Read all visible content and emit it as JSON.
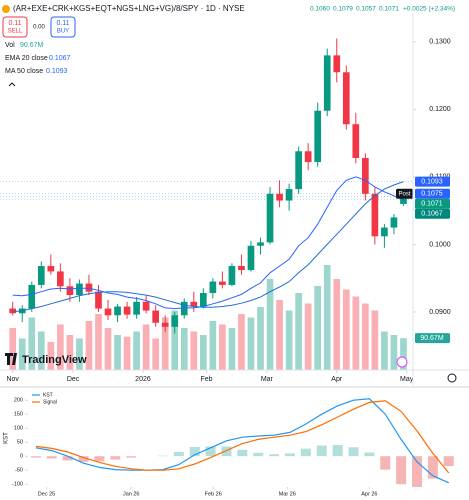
{
  "header": {
    "symbol": "(AR+EXE+CRK+KGS+EQT+NGS+LNG+VG)/8/SPY · 1D · NYSE",
    "open": "0.1060",
    "high": "0.1079",
    "low": "0.1057",
    "close": "0.1071",
    "change": "+0.0025 (+2.34%)",
    "sell_price": "0.11",
    "sell_label": "SELL",
    "spread": "0.00",
    "buy_price": "0.11",
    "buy_label": "BUY",
    "vol_label": "Vol",
    "vol_value": "90.67M",
    "logo": "TradingView"
  },
  "chart_data": [
    {
      "type": "candlestick",
      "x": [
        0,
        3,
        6,
        9,
        12,
        15,
        18,
        21,
        24,
        27,
        30,
        33,
        36,
        39,
        42,
        45,
        48,
        51,
        54,
        57,
        60,
        63,
        66,
        69,
        72,
        75,
        78,
        81,
        84,
        87,
        90,
        93,
        96,
        99,
        102,
        105,
        108,
        111,
        114,
        117,
        120,
        123
      ],
      "open": [
        0.0905,
        0.0898,
        0.0905,
        0.094,
        0.0968,
        0.096,
        0.0938,
        0.0925,
        0.0942,
        0.093,
        0.0905,
        0.0895,
        0.0908,
        0.0896,
        0.0915,
        0.0902,
        0.0884,
        0.0878,
        0.0895,
        0.0915,
        0.0908,
        0.0928,
        0.0945,
        0.094,
        0.0968,
        0.0962,
        0.0998,
        0.1003,
        0.1075,
        0.1065,
        0.1082,
        0.1138,
        0.1122,
        0.1198,
        0.128,
        0.1255,
        0.1178,
        0.1128,
        0.1075,
        0.1012,
        0.1025,
        0.106
      ],
      "high": [
        0.0915,
        0.091,
        0.0945,
        0.0975,
        0.0985,
        0.0972,
        0.095,
        0.0948,
        0.0955,
        0.094,
        0.0918,
        0.0912,
        0.0915,
        0.0922,
        0.0925,
        0.091,
        0.0895,
        0.09,
        0.092,
        0.093,
        0.0935,
        0.095,
        0.096,
        0.0972,
        0.0985,
        0.1005,
        0.101,
        0.1085,
        0.1095,
        0.109,
        0.1145,
        0.115,
        0.121,
        0.129,
        0.1305,
        0.1265,
        0.1195,
        0.1135,
        0.1085,
        0.103,
        0.1045,
        0.1079
      ],
      "low": [
        0.0895,
        0.0885,
        0.09,
        0.0935,
        0.0955,
        0.093,
        0.0915,
        0.0915,
        0.0925,
        0.09,
        0.0888,
        0.0885,
        0.089,
        0.089,
        0.0898,
        0.0878,
        0.087,
        0.0868,
        0.089,
        0.09,
        0.0905,
        0.092,
        0.0935,
        0.0938,
        0.0955,
        0.096,
        0.0985,
        0.1,
        0.1055,
        0.105,
        0.1075,
        0.111,
        0.1115,
        0.119,
        0.124,
        0.117,
        0.112,
        0.1065,
        0.1,
        0.0995,
        0.1015,
        0.1057
      ],
      "close": [
        0.0898,
        0.0905,
        0.094,
        0.0968,
        0.096,
        0.0938,
        0.0925,
        0.0942,
        0.093,
        0.0905,
        0.0895,
        0.0908,
        0.0896,
        0.0915,
        0.0902,
        0.0884,
        0.0878,
        0.0895,
        0.0915,
        0.0908,
        0.0928,
        0.0945,
        0.094,
        0.0968,
        0.0962,
        0.0998,
        0.1003,
        0.1075,
        0.1065,
        0.1082,
        0.1138,
        0.1122,
        0.1198,
        0.128,
        0.1255,
        0.1178,
        0.1128,
        0.1075,
        0.1012,
        0.1025,
        0.104,
        0.1071
      ],
      "volume": [
        120,
        90,
        150,
        110,
        80,
        130,
        100,
        90,
        140,
        160,
        120,
        100,
        95,
        110,
        130,
        90,
        150,
        170,
        120,
        110,
        100,
        140,
        130,
        120,
        160,
        150,
        180,
        260,
        200,
        170,
        220,
        190,
        240,
        300,
        260,
        230,
        210,
        190,
        170,
        110,
        100,
        91
      ],
      "up_color": "#089981",
      "down_color": "#f23645",
      "xlim": [
        -4,
        126
      ],
      "ylim": [
        0.0814,
        0.1362
      ],
      "vlim": [
        0,
        400
      ],
      "xticks": [
        {
          "value": 0,
          "label": "Nov"
        },
        {
          "value": 19,
          "label": "Dec"
        },
        {
          "value": 41,
          "label": "2026"
        },
        {
          "value": 61,
          "label": "Feb"
        },
        {
          "value": 80,
          "label": "Mar"
        },
        {
          "value": 102,
          "label": "Apr"
        },
        {
          "value": 124,
          "label": "May"
        }
      ],
      "yticks": [
        {
          "value": 0.09,
          "label": "0.0900"
        },
        {
          "value": 0.1,
          "label": "0.1000"
        },
        {
          "value": 0.11,
          "label": "0.1100"
        },
        {
          "value": 0.12,
          "label": "0.1200"
        },
        {
          "value": 0.13,
          "label": "0.1300"
        }
      ],
      "lines": [
        {
          "name": "EMA 20 close",
          "color": "#2962ff",
          "values": [
            0.0925,
            0.0924,
            0.0926,
            0.093,
            0.0934,
            0.0935,
            0.0934,
            0.0935,
            0.0935,
            0.0932,
            0.0928,
            0.0926,
            0.0922,
            0.092,
            0.0917,
            0.0912,
            0.0906,
            0.0905,
            0.0906,
            0.0906,
            0.0908,
            0.0912,
            0.0916,
            0.0921,
            0.0926,
            0.0935,
            0.0943,
            0.0958,
            0.0968,
            0.0978,
            0.0998,
            0.101,
            0.103,
            0.1055,
            0.108,
            0.1095,
            0.11,
            0.1095,
            0.1085,
            0.1078,
            0.1072,
            0.1067
          ]
        },
        {
          "name": "MA 50 close",
          "color": "#1e6fd9",
          "values": [
            0.09,
            0.0902,
            0.0905,
            0.0908,
            0.0912,
            0.0916,
            0.092,
            0.0924,
            0.0927,
            0.0929,
            0.093,
            0.093,
            0.0929,
            0.0927,
            0.0925,
            0.0922,
            0.0918,
            0.0914,
            0.091,
            0.0908,
            0.0907,
            0.0907,
            0.0908,
            0.091,
            0.0913,
            0.0917,
            0.0922,
            0.093,
            0.0937,
            0.0945,
            0.0958,
            0.097,
            0.0985,
            0.1,
            0.1015,
            0.103,
            0.1045,
            0.106,
            0.1072,
            0.1082,
            0.1088,
            0.1093
          ]
        }
      ],
      "price_labels": [
        {
          "value": 0.1093,
          "label": "0.1093",
          "color": "#2962ff"
        },
        {
          "value": 0.1075,
          "label": "0.1075",
          "tag": "Post",
          "color": "#2962ff"
        },
        {
          "value": 0.1071,
          "label": "0.1071",
          "color": "#089981"
        },
        {
          "value": 0.1067,
          "label": "0.1067",
          "color": "#00897b"
        }
      ]
    },
    {
      "type": "line",
      "ylabel": "KST",
      "x": [
        20,
        26,
        32,
        38,
        44,
        50,
        56,
        62,
        68,
        74,
        80,
        86,
        92,
        98,
        104,
        110,
        116,
        122,
        128,
        134,
        140,
        146,
        152,
        158,
        164,
        170,
        176
      ],
      "series": [
        {
          "name": "KST",
          "color": "#2196f3",
          "values": [
            30,
            20,
            0,
            -25,
            -40,
            -48,
            -50,
            -50,
            -48,
            -30,
            5,
            30,
            55,
            68,
            72,
            75,
            85,
            115,
            150,
            180,
            200,
            205,
            150,
            60,
            -20,
            -70,
            -95
          ]
        },
        {
          "name": "Signal",
          "color": "#ff6d00",
          "values": [
            35,
            28,
            15,
            -5,
            -22,
            -36,
            -45,
            -50,
            -50,
            -45,
            -28,
            -5,
            20,
            45,
            60,
            68,
            75,
            88,
            112,
            140,
            168,
            192,
            198,
            160,
            90,
            10,
            -60
          ]
        }
      ],
      "histogram": {
        "up_color": "#b2dfdb",
        "down_color": "#f5b5b5",
        "values": [
          -5,
          -8,
          -15,
          -20,
          -18,
          -12,
          -5,
          0,
          2,
          15,
          33,
          35,
          35,
          23,
          12,
          7,
          10,
          27,
          38,
          40,
          32,
          13,
          -48,
          -100,
          -110,
          -80,
          -35
        ]
      },
      "xlim": [
        17,
        181
      ],
      "ylim": [
        -110,
        240
      ],
      "xticks": [
        {
          "value": 24,
          "label": "Dec 25"
        },
        {
          "value": 56,
          "label": "Jan 26"
        },
        {
          "value": 87,
          "label": "Feb 26"
        },
        {
          "value": 115,
          "label": "Mar 26"
        },
        {
          "value": 146,
          "label": "Apr 26"
        }
      ],
      "yticks": [
        -100,
        -50,
        0,
        50,
        100,
        150,
        200
      ]
    }
  ]
}
